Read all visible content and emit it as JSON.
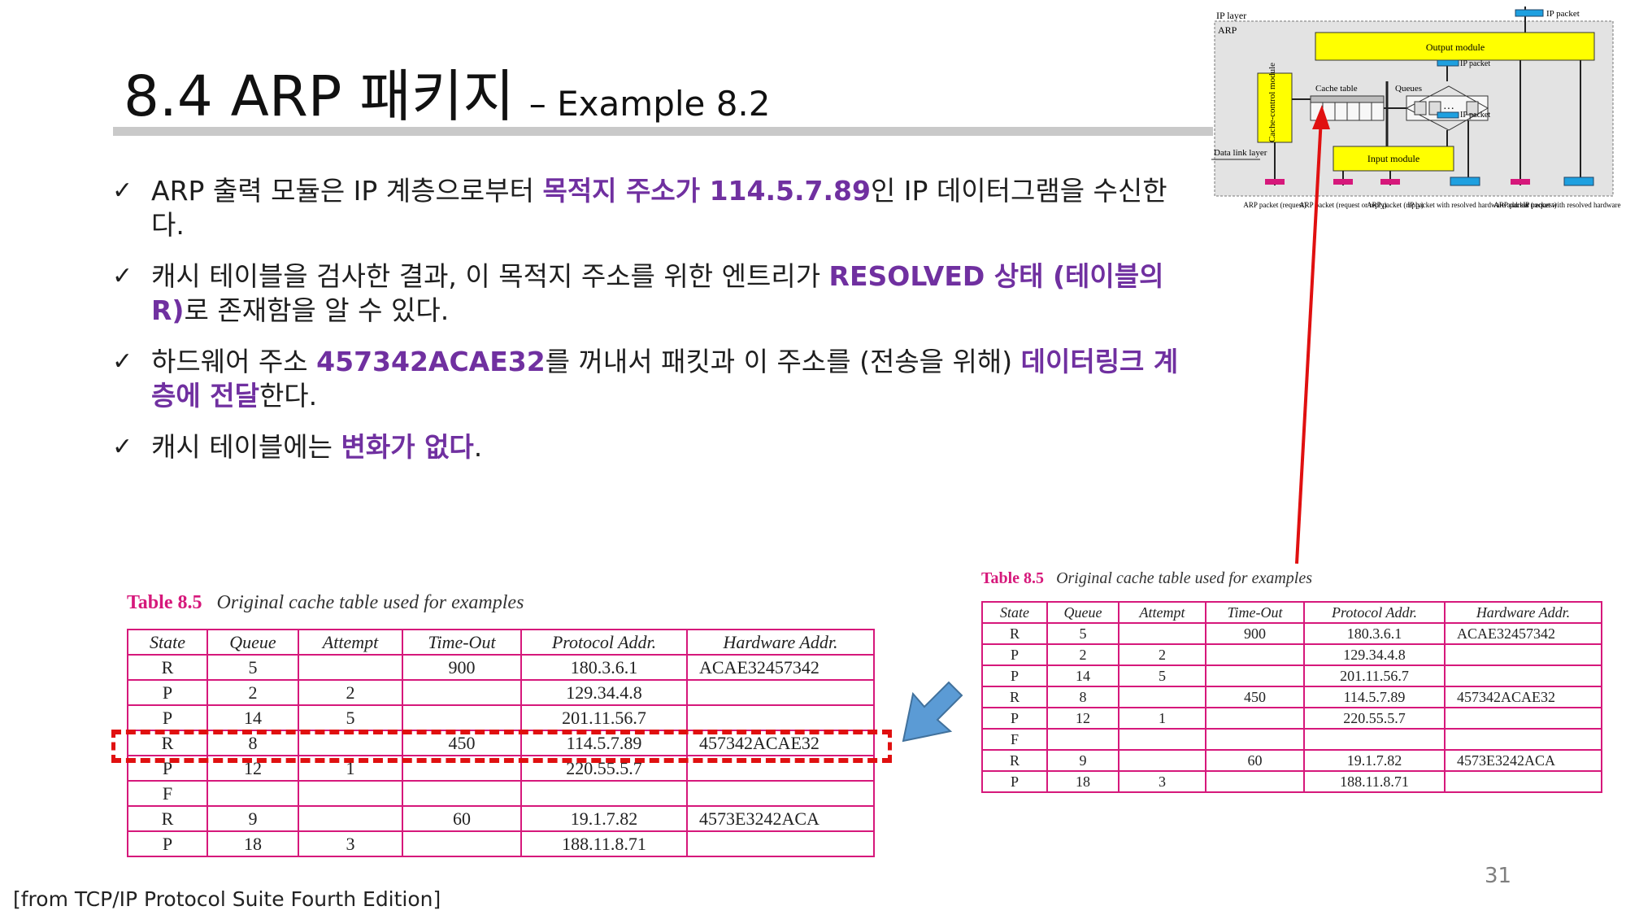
{
  "slide": {
    "title": "8.4 ARP 패키지",
    "subtitle": "– Example 8.2",
    "page_number": "31",
    "source": "[from TCP/IP Protocol Suite Fourth Edition]"
  },
  "bullets": [
    {
      "pre": "ARP 출력 모듈은 IP 계층으로부터 ",
      "hl": "목적지 주소가 114.5.7.89",
      "post": "인 IP 데이터그램을 수신한다."
    },
    {
      "pre": "캐시 테이블을 검사한 결과, 이 목적지 주소를 위한 엔트리가 ",
      "hl": "RESOLVED 상태 (테이블의 R)",
      "post": "로 존재함을 알 수 있다."
    },
    {
      "pre": "하드웨어 주소 ",
      "hl": "457342ACAE32",
      "mid": "를 꺼내서 패킷과 이 주소를 (전송을 위해) ",
      "hl2": "데이터링크 계층에 전달",
      "post": "한다."
    },
    {
      "pre": "캐시 테이블에는 ",
      "hl": "변화가 없다",
      "post": "."
    }
  ],
  "table": {
    "number": "Table 8.5",
    "caption": "Original cache table used for examples",
    "headers": [
      "State",
      "Queue",
      "Attempt",
      "Time-Out",
      "Protocol Addr.",
      "Hardware Addr."
    ],
    "rows": [
      [
        "R",
        "5",
        "",
        "900",
        "180.3.6.1",
        "ACAE32457342"
      ],
      [
        "P",
        "2",
        "2",
        "",
        "129.34.4.8",
        ""
      ],
      [
        "P",
        "14",
        "5",
        "",
        "201.11.56.7",
        ""
      ],
      [
        "R",
        "8",
        "",
        "450",
        "114.5.7.89",
        "457342ACAE32"
      ],
      [
        "P",
        "12",
        "1",
        "",
        "220.55.5.7",
        ""
      ],
      [
        "F",
        "",
        "",
        "",
        "",
        ""
      ],
      [
        "R",
        "9",
        "",
        "60",
        "19.1.7.82",
        "4573E3242ACA"
      ],
      [
        "P",
        "18",
        "3",
        "",
        "188.11.8.71",
        ""
      ]
    ],
    "highlight_row": 3
  },
  "diagram": {
    "ip_layer": "IP layer",
    "arp": "ARP",
    "output_module": "Output module",
    "input_module": "Input module",
    "cache_control": "Cache-control module",
    "cache_table": "Cache table",
    "queues": "Queues",
    "ip_packet": "IP packet",
    "data_link": "Data link layer",
    "bottom_labels": [
      "ARP packet (request)",
      "ARP packet (request or reply)",
      "ARP packet (reply)",
      "IP packet with resolved hardware address",
      "ARP packet (request)",
      "IP packet with resolved hardware address"
    ]
  },
  "colors": {
    "highlight": "#7030a0",
    "table_border": "#d6187b",
    "module_fill": "#ffff00",
    "red_arrow": "#e01010",
    "blue_arrow": "#5b9bd5"
  }
}
